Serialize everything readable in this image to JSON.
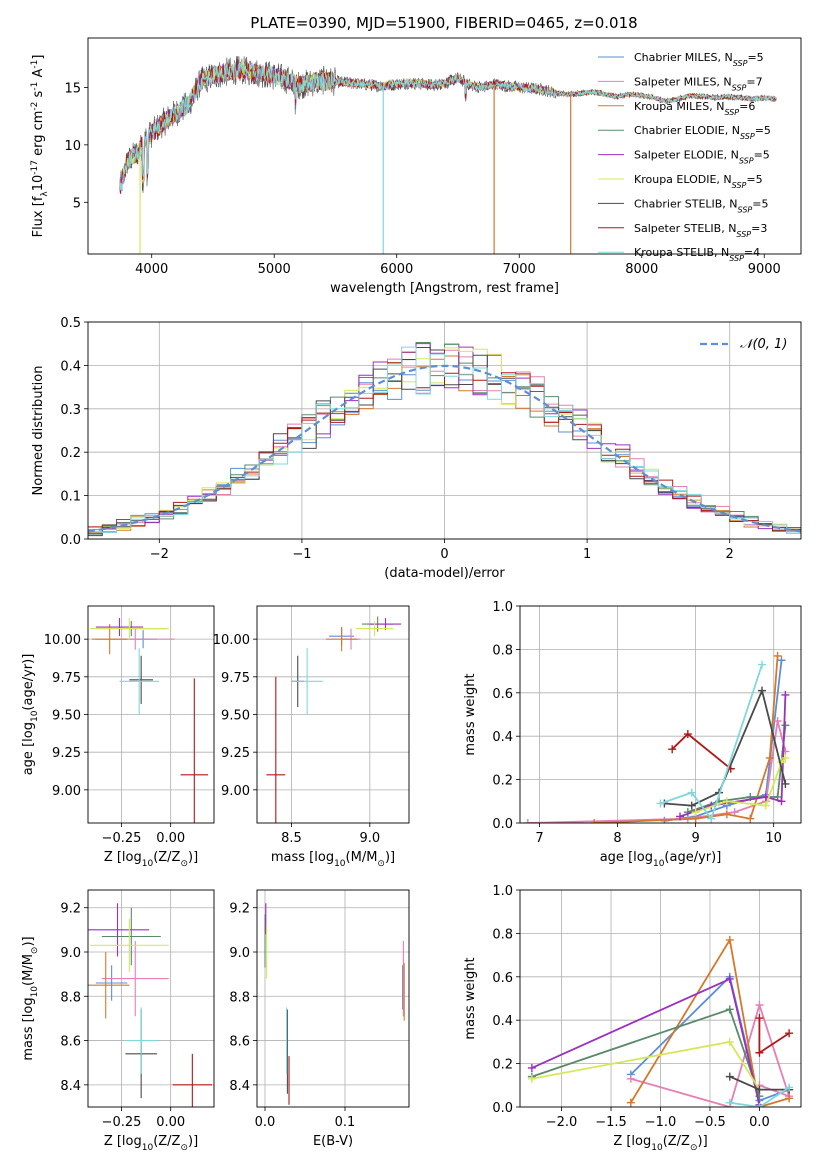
{
  "figure": {
    "title": "PLATE=0390, MJD=51900, FIBERID=0465, z=0.018"
  },
  "models": [
    {
      "key": "chabrier_miles",
      "label": "Chabrier MILES, N$_{SSP}$=5",
      "label_main": "Chabrier MILES, N",
      "label_sub": "SSP",
      "label_tail": "=5",
      "color": "#5b8fd6"
    },
    {
      "key": "salpeter_miles",
      "label": "Salpeter MILES, N$_{SSP}$=7",
      "label_main": "Salpeter MILES, N",
      "label_sub": "SSP",
      "label_tail": "=7",
      "color": "#e67fb3"
    },
    {
      "key": "kroupa_miles",
      "label": "Kroupa MILES, N$_{SSP}$=6",
      "label_main": "Kroupa MILES, N",
      "label_sub": "SSP",
      "label_tail": "=6",
      "color": "#d4792c"
    },
    {
      "key": "chabrier_elodie",
      "label": "Chabrier ELODIE, N$_{SSP}$=5",
      "label_main": "Chabrier ELODIE, N",
      "label_sub": "SSP",
      "label_tail": "=5",
      "color": "#5a8a6a"
    },
    {
      "key": "salpeter_elodie",
      "label": "Salpeter ELODIE, N$_{SSP}$=5",
      "label_main": "Salpeter ELODIE, N",
      "label_sub": "SSP",
      "label_tail": "=5",
      "color": "#9b30c0"
    },
    {
      "key": "kroupa_elodie",
      "label": "Kroupa ELODIE, N$_{SSP}$=5",
      "label_main": "Kroupa ELODIE, N",
      "label_sub": "SSP",
      "label_tail": "=5",
      "color": "#d4e85a"
    },
    {
      "key": "chabrier_stelib",
      "label": "Chabrier STELIB, N$_{SSP}$=5",
      "label_main": "Chabrier STELIB, N",
      "label_sub": "SSP",
      "label_tail": "=5",
      "color": "#4a4a4a"
    },
    {
      "key": "salpeter_stelib",
      "label": "Salpeter STELIB, N$_{SSP}$=3",
      "label_main": "Salpeter STELIB, N",
      "label_sub": "SSP",
      "label_tail": "=3",
      "color": "#b01818"
    },
    {
      "key": "kroupa_stelib",
      "label": "Kroupa STELIB, N$_{SSP}$=4",
      "label_main": "Kroupa STELIB, N",
      "label_sub": "SSP",
      "label_tail": "=4",
      "color": "#7fd8dc"
    }
  ],
  "chart_data": [
    {
      "id": "spectrum",
      "type": "line",
      "title": "PLATE=0390, MJD=51900, FIBERID=0465, z=0.018",
      "xlabel": "wavelength [Angstrom, rest frame]",
      "ylabel": "Flux [f$_\\lambda$10$^{-17}$ erg cm$^{-2}$ s$^{-1}$ A$^{-1}$]",
      "xlim": [
        3480,
        9300
      ],
      "ylim": [
        0.5,
        19.3
      ],
      "xticks": [
        4000,
        5000,
        6000,
        7000,
        8000,
        9000
      ],
      "yticks": [
        5,
        10,
        15
      ],
      "grid": false,
      "legend": "upper right",
      "continuum_x": [
        3750,
        3800,
        3850,
        3900,
        3950,
        4000,
        4100,
        4200,
        4300,
        4400,
        4500,
        4600,
        4700,
        4800,
        4900,
        5000,
        5100,
        5200,
        5300,
        5400,
        5500,
        5600,
        5700,
        5800,
        5900,
        6000,
        6100,
        6200,
        6300,
        6400,
        6500,
        6600,
        6700,
        6800,
        6900,
        7000,
        7100,
        7200,
        7300,
        7400,
        7500,
        7600,
        7700,
        7800,
        7900,
        8000,
        8100,
        8200,
        8300,
        8400,
        8500,
        8600,
        8700,
        8800,
        8900,
        9000,
        9100
      ],
      "continuum_y": [
        6.5,
        8.5,
        9.0,
        9.5,
        10.5,
        11.0,
        12.0,
        12.8,
        13.5,
        15.5,
        16.0,
        16.3,
        16.5,
        16.4,
        16.2,
        16.0,
        15.7,
        15.2,
        15.4,
        15.6,
        15.5,
        15.4,
        15.3,
        15.2,
        15.1,
        15.3,
        15.4,
        15.3,
        15.2,
        15.4,
        15.8,
        15.2,
        15.0,
        15.3,
        15.1,
        15.0,
        14.9,
        14.8,
        14.5,
        14.4,
        14.5,
        14.6,
        14.4,
        14.2,
        14.4,
        14.3,
        14.1,
        13.8,
        14.0,
        14.3,
        14.2,
        14.1,
        14.2,
        14.1,
        14.0,
        14.1,
        14.0
      ],
      "data_range_x": [
        3740,
        9100
      ]
    },
    {
      "id": "residuals",
      "type": "histogram",
      "xlabel": "(data-model)/error",
      "ylabel": "Normed distribution",
      "xlim": [
        -2.5,
        2.5
      ],
      "ylim": [
        0,
        0.5
      ],
      "xticks": [
        -2,
        -1,
        0,
        1,
        2
      ],
      "yticks": [
        0.0,
        0.1,
        0.2,
        0.3,
        0.4,
        0.5
      ],
      "grid": true,
      "legend": "upper right",
      "reference_label": "$\\mathcal{N}(0,1)$",
      "reference_label_text": "𝒩(0, 1)",
      "bin_width": 0.1
    },
    {
      "id": "age_vs_Z",
      "type": "scatter",
      "xlabel": "Z [log$_{10}$(Z/Z$_\\odot$)]",
      "ylabel": "age  [log$_{10}$(age/yr)]",
      "xlim": [
        -0.42,
        0.22
      ],
      "ylim": [
        8.78,
        10.22
      ],
      "xticks": [
        -0.25,
        0.0
      ],
      "yticks": [
        9.0,
        9.25,
        9.5,
        9.75,
        10.0
      ],
      "grid": true,
      "points": [
        {
          "model": "chabrier_miles",
          "x": -0.14,
          "xerr": 0.07,
          "y": 10.0,
          "yerr": 0.06
        },
        {
          "model": "salpeter_miles",
          "x": -0.18,
          "xerr": 0.2,
          "y": 10.0,
          "yerr": 0.07
        },
        {
          "model": "kroupa_miles",
          "x": -0.31,
          "xerr": 0.09,
          "y": 10.0,
          "yerr": 0.1
        },
        {
          "model": "chabrier_elodie",
          "x": -0.2,
          "xerr": 0.18,
          "y": 10.07,
          "yerr": 0.05
        },
        {
          "model": "salpeter_elodie",
          "x": -0.26,
          "xerr": 0.12,
          "y": 10.08,
          "yerr": 0.06
        },
        {
          "model": "kroupa_elodie",
          "x": -0.21,
          "xerr": 0.2,
          "y": 10.07,
          "yerr": 0.07
        },
        {
          "model": "chabrier_stelib",
          "x": -0.15,
          "xerr": 0.06,
          "y": 9.73,
          "yerr": 0.16
        },
        {
          "model": "salpeter_stelib",
          "x": 0.12,
          "xerr": 0.07,
          "y": 9.1,
          "yerr": 0.64
        },
        {
          "model": "kroupa_stelib",
          "x": -0.16,
          "xerr": 0.1,
          "y": 9.72,
          "yerr": 0.22
        }
      ]
    },
    {
      "id": "age_vs_mass",
      "type": "scatter",
      "xlabel": "mass [log$_{10}$(M/M$_\\odot$)]",
      "ylabel": "",
      "xlim": [
        8.28,
        9.25
      ],
      "ylim": [
        8.78,
        10.22
      ],
      "xticks": [
        8.5,
        9.0
      ],
      "yticks": [
        9.0,
        9.25,
        9.5,
        9.75,
        10.0
      ],
      "grid": true,
      "points": [
        {
          "model": "chabrier_miles",
          "x": 8.82,
          "xerr": 0.08,
          "y": 10.02,
          "yerr": 0.06
        },
        {
          "model": "salpeter_miles",
          "x": 8.88,
          "xerr": 0.06,
          "y": 10.0,
          "yerr": 0.07
        },
        {
          "model": "kroupa_miles",
          "x": 8.82,
          "xerr": 0.1,
          "y": 10.0,
          "yerr": 0.08
        },
        {
          "model": "chabrier_elodie",
          "x": 9.05,
          "xerr": 0.1,
          "y": 10.1,
          "yerr": 0.05
        },
        {
          "model": "salpeter_elodie",
          "x": 9.1,
          "xerr": 0.1,
          "y": 10.1,
          "yerr": 0.04
        },
        {
          "model": "kroupa_elodie",
          "x": 9.03,
          "xerr": 0.12,
          "y": 10.07,
          "yerr": 0.05
        },
        {
          "model": "chabrier_stelib",
          "x": 8.54,
          "xerr": 0.04,
          "y": 9.72,
          "yerr": 0.17
        },
        {
          "model": "salpeter_stelib",
          "x": 8.4,
          "xerr": 0.06,
          "y": 9.1,
          "yerr": 0.65
        },
        {
          "model": "kroupa_stelib",
          "x": 8.6,
          "xerr": 0.1,
          "y": 9.72,
          "yerr": 0.22
        }
      ]
    },
    {
      "id": "weight_vs_age",
      "type": "line",
      "xlabel": "age  [log$_{10}$(age/yr)]",
      "ylabel": "mass weight",
      "xlim": [
        6.75,
        10.35
      ],
      "ylim": [
        0.0,
        1.0
      ],
      "xticks": [
        7,
        8,
        9,
        10
      ],
      "yticks": [
        0.0,
        0.2,
        0.4,
        0.6,
        0.8,
        1.0
      ],
      "grid": true,
      "series": [
        {
          "model": "chabrier_miles",
          "x": [
            8.6,
            9.0,
            9.4,
            9.9,
            10.1
          ],
          "y": [
            0.01,
            0.03,
            0.08,
            0.13,
            0.75
          ]
        },
        {
          "model": "salpeter_miles",
          "x": [
            6.85,
            8.9,
            9.5,
            9.9,
            10.05,
            10.15
          ],
          "y": [
            0.0,
            0.02,
            0.05,
            0.1,
            0.47,
            0.33
          ]
        },
        {
          "model": "kroupa_miles",
          "x": [
            7.7,
            9.0,
            9.4,
            9.7,
            9.95,
            10.05
          ],
          "y": [
            0.0,
            0.02,
            0.04,
            0.02,
            0.3,
            0.77
          ]
        },
        {
          "model": "chabrier_elodie",
          "x": [
            8.9,
            9.3,
            9.7,
            10.05,
            10.15
          ],
          "y": [
            0.05,
            0.1,
            0.12,
            0.12,
            0.45
          ]
        },
        {
          "model": "salpeter_elodie",
          "x": [
            8.8,
            9.2,
            9.9,
            10.1,
            10.15
          ],
          "y": [
            0.03,
            0.08,
            0.12,
            0.1,
            0.59
          ]
        },
        {
          "model": "kroupa_elodie",
          "x": [
            9.0,
            9.4,
            9.9,
            10.1,
            10.15
          ],
          "y": [
            0.05,
            0.1,
            0.08,
            0.28,
            0.3
          ]
        },
        {
          "model": "chabrier_stelib",
          "x": [
            8.6,
            8.95,
            9.3,
            9.85,
            10.15
          ],
          "y": [
            0.09,
            0.08,
            0.14,
            0.61,
            0.18
          ]
        },
        {
          "model": "salpeter_stelib",
          "x": [
            8.7,
            8.9,
            9.45
          ],
          "y": [
            0.34,
            0.41,
            0.25
          ]
        },
        {
          "model": "kroupa_stelib",
          "x": [
            8.55,
            8.95,
            9.2,
            9.85
          ],
          "y": [
            0.09,
            0.14,
            0.02,
            0.73
          ]
        }
      ]
    },
    {
      "id": "mass_vs_Z",
      "type": "scatter",
      "xlabel": "Z [log$_{10}$(Z/Z$_\\odot$)]",
      "ylabel": "mass [log$_{10}$(M/M$_\\odot$)]",
      "xlim": [
        -0.42,
        0.22
      ],
      "ylim": [
        8.3,
        9.28
      ],
      "xticks": [
        -0.25,
        0.0
      ],
      "yticks": [
        8.4,
        8.6,
        8.8,
        9.0,
        9.2
      ],
      "grid": true,
      "points": [
        {
          "model": "chabrier_miles",
          "x": -0.3,
          "xerr": 0.08,
          "y": 8.86,
          "yerr": 0.08
        },
        {
          "model": "salpeter_miles",
          "x": -0.18,
          "xerr": 0.17,
          "y": 8.88,
          "yerr": 0.17
        },
        {
          "model": "kroupa_miles",
          "x": -0.33,
          "xerr": 0.12,
          "y": 8.85,
          "yerr": 0.15
        },
        {
          "model": "chabrier_elodie",
          "x": -0.2,
          "xerr": 0.15,
          "y": 9.07,
          "yerr": 0.13
        },
        {
          "model": "salpeter_elodie",
          "x": -0.27,
          "xerr": 0.16,
          "y": 9.1,
          "yerr": 0.12
        },
        {
          "model": "kroupa_elodie",
          "x": -0.21,
          "xerr": 0.2,
          "y": 9.03,
          "yerr": 0.12
        },
        {
          "model": "chabrier_stelib",
          "x": -0.15,
          "xerr": 0.08,
          "y": 8.54,
          "yerr": 0.2
        },
        {
          "model": "salpeter_stelib",
          "x": 0.11,
          "xerr": 0.1,
          "y": 8.4,
          "yerr": 0.14
        },
        {
          "model": "kroupa_stelib",
          "x": -0.15,
          "xerr": 0.08,
          "y": 8.6,
          "yerr": 0.15
        }
      ]
    },
    {
      "id": "mass_vs_ebv",
      "type": "scatter",
      "xlabel": "E(B-V)",
      "ylabel": "",
      "xlim": [
        -0.01,
        0.18
      ],
      "ylim": [
        8.3,
        9.28
      ],
      "xticks": [
        0.0,
        0.1
      ],
      "yticks": [
        8.4,
        8.6,
        8.8,
        9.0,
        9.2
      ],
      "grid": true,
      "points": [
        {
          "model": "chabrier_miles",
          "x": 0.172,
          "xerr": 0,
          "y": 8.84,
          "yerr": 0.1
        },
        {
          "model": "salpeter_miles",
          "x": 0.173,
          "xerr": 0,
          "y": 8.88,
          "yerr": 0.17
        },
        {
          "model": "kroupa_miles",
          "x": 0.174,
          "xerr": 0,
          "y": 8.82,
          "yerr": 0.13
        },
        {
          "model": "chabrier_elodie",
          "x": 0.0,
          "xerr": 0,
          "y": 9.05,
          "yerr": 0.12
        },
        {
          "model": "salpeter_elodie",
          "x": 0.001,
          "xerr": 0,
          "y": 9.15,
          "yerr": 0.07
        },
        {
          "model": "kroupa_elodie",
          "x": 0.002,
          "xerr": 0,
          "y": 9.0,
          "yerr": 0.12
        },
        {
          "model": "chabrier_stelib",
          "x": 0.028,
          "xerr": 0,
          "y": 8.55,
          "yerr": 0.19
        },
        {
          "model": "salpeter_stelib",
          "x": 0.03,
          "xerr": 0,
          "y": 8.42,
          "yerr": 0.11
        },
        {
          "model": "kroupa_stelib",
          "x": 0.027,
          "xerr": 0,
          "y": 8.6,
          "yerr": 0.15
        }
      ]
    },
    {
      "id": "weight_vs_Z",
      "type": "line",
      "xlabel": "Z [log$_{10}$(Z/Z$_\\odot$)]",
      "ylabel": "mass weight",
      "xlim": [
        -2.42,
        0.42
      ],
      "ylim": [
        0.0,
        1.0
      ],
      "xticks": [
        -2.0,
        -1.5,
        -1.0,
        -0.5,
        0.0
      ],
      "yticks": [
        0.0,
        0.2,
        0.4,
        0.6,
        0.8,
        1.0
      ],
      "grid": true,
      "series": [
        {
          "model": "chabrier_miles",
          "x": [
            -1.3,
            -0.3,
            0.0,
            0.3
          ],
          "y": [
            0.15,
            0.6,
            0.03,
            0.08
          ]
        },
        {
          "model": "salpeter_miles",
          "x": [
            -1.3,
            -0.3,
            0.0,
            0.3,
            0.0
          ],
          "y": [
            0.13,
            0.0,
            0.47,
            0.05,
            0.1
          ]
        },
        {
          "model": "kroupa_miles",
          "x": [
            -1.3,
            -0.3,
            0.0,
            0.3
          ],
          "y": [
            0.02,
            0.77,
            0.0,
            0.04
          ]
        },
        {
          "model": "chabrier_elodie",
          "x": [
            -2.3,
            -0.3,
            0.0
          ],
          "y": [
            0.14,
            0.45,
            0.05
          ]
        },
        {
          "model": "salpeter_elodie",
          "x": [
            -2.3,
            -0.3,
            0.0
          ],
          "y": [
            0.18,
            0.59,
            0.01
          ]
        },
        {
          "model": "kroupa_elodie",
          "x": [
            -2.3,
            -0.3,
            0.0
          ],
          "y": [
            0.13,
            0.3,
            0.08
          ]
        },
        {
          "model": "chabrier_stelib",
          "x": [
            -0.3,
            0.0,
            0.3
          ],
          "y": [
            0.14,
            0.08,
            0.08
          ]
        },
        {
          "model": "salpeter_stelib",
          "x": [
            0.0,
            0.0,
            0.3
          ],
          "y": [
            0.41,
            0.25,
            0.34
          ]
        },
        {
          "model": "kroupa_stelib",
          "x": [
            -0.3,
            0.0,
            0.3
          ],
          "y": [
            0.02,
            0.0,
            0.09
          ]
        }
      ]
    }
  ]
}
